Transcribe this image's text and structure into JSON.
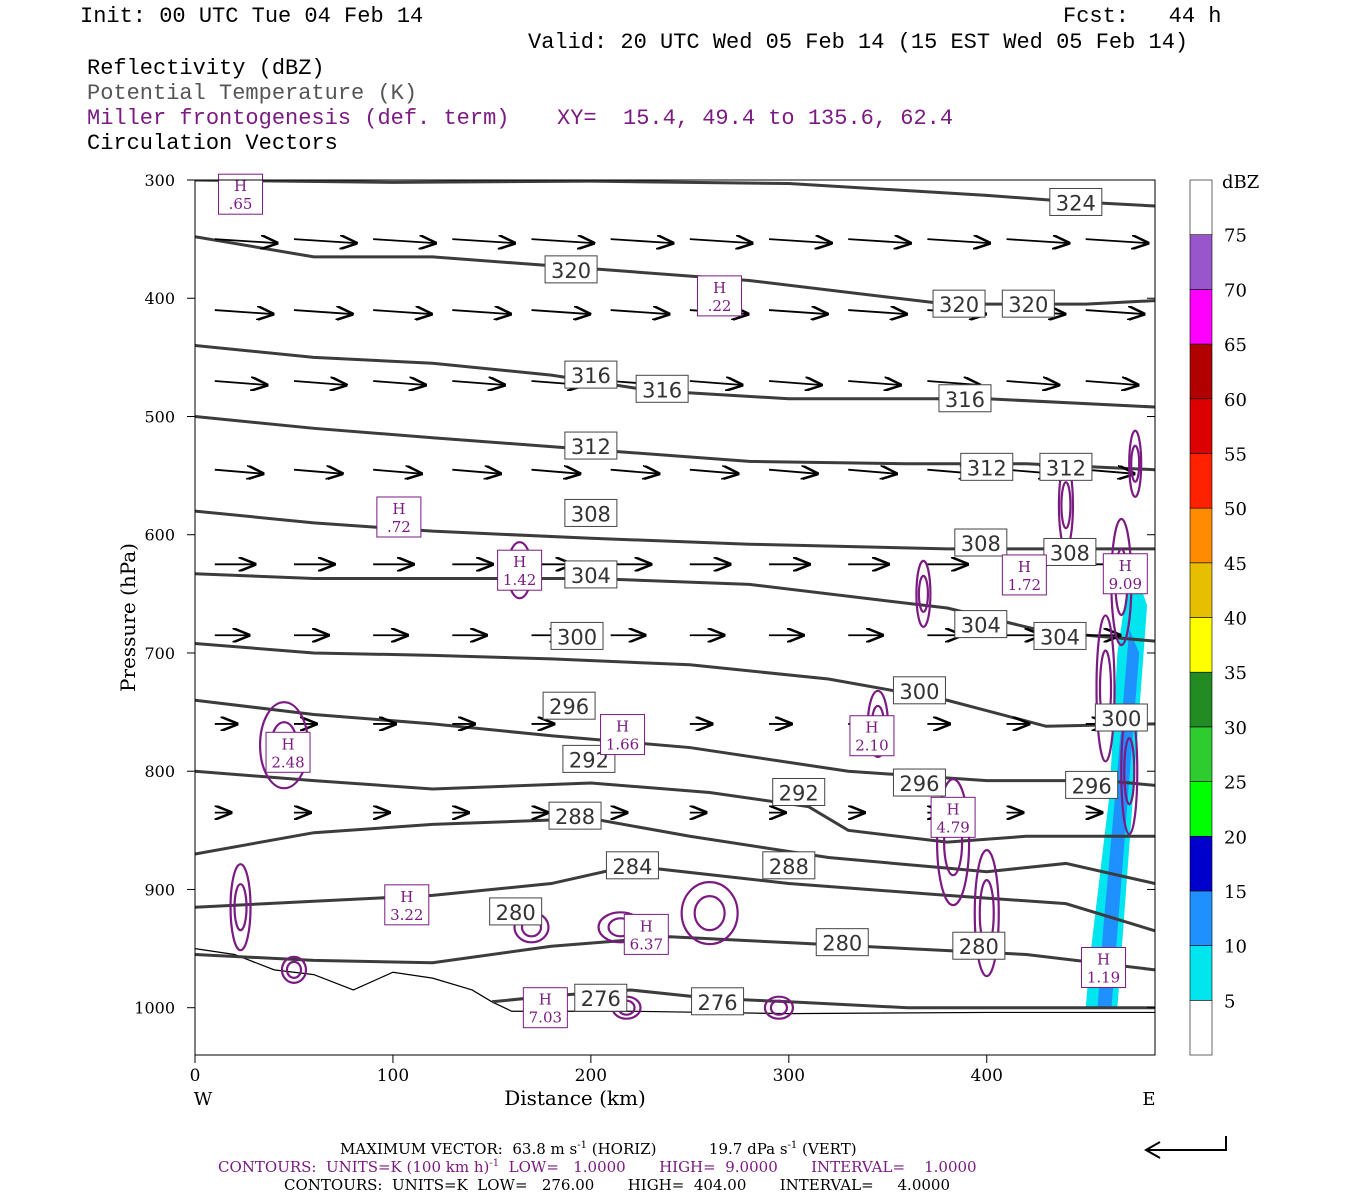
{
  "header": {
    "init": "Init: 00 UTC Tue 04 Feb 14",
    "fcst": "Fcst:   44 h",
    "valid": "Valid: 20 UTC Wed 05 Feb 14 (15 EST Wed 05 Feb 14)",
    "field_reflectivity": "Reflectivity (dBZ)",
    "field_theta": "Potential Temperature (K)",
    "field_frontogenesis": "Miller frontogenesis (def. term)",
    "xy": "XY=  15.4, 49.4 to 135.6, 62.4",
    "field_vectors": "Circulation Vectors"
  },
  "colors": {
    "theta_contour": "#3c3c3c",
    "frontogenesis": "#7a1a82",
    "vectors": "#000000"
  },
  "chart_data": {
    "type": "cross-section",
    "xlabel": "Distance (km)",
    "ylabel": "Pressure (hPa)",
    "xlim": [
      0,
      485
    ],
    "ylim": [
      1040,
      300
    ],
    "x_ticks": [
      "0",
      "100",
      "200",
      "300",
      "400"
    ],
    "y_ticks": [
      "300",
      "400",
      "500",
      "600",
      "700",
      "800",
      "900",
      "1000"
    ],
    "x_end_left": "W",
    "x_end_right": "E",
    "colorbar": {
      "unit": "dBZ",
      "levels": [
        "5",
        "10",
        "15",
        "20",
        "25",
        "30",
        "35",
        "40",
        "45",
        "50",
        "55",
        "60",
        "65",
        "70",
        "75"
      ],
      "colors": [
        "#ffffff",
        "#00e5ee",
        "#1e90ff",
        "#0000cd",
        "#00ff00",
        "#2ecc2e",
        "#228b22",
        "#ffff00",
        "#e6c000",
        "#ff8c00",
        "#ff2200",
        "#dd0000",
        "#b00000",
        "#ff00ff",
        "#9955cc",
        "#ffffff"
      ]
    },
    "theta_contours": [
      {
        "label": "324",
        "x": [
          0,
          100,
          200,
          300,
          400,
          440,
          485
        ],
        "p": [
          300,
          302,
          301,
          303,
          313,
          318,
          322
        ],
        "labels_at": [
          [
            445,
            319
          ]
        ]
      },
      {
        "label": "320",
        "x": [
          0,
          60,
          120,
          200,
          280,
          330,
          380,
          420,
          450,
          485
        ],
        "p": [
          348,
          365,
          365,
          375,
          385,
          395,
          405,
          405,
          405,
          402
        ],
        "labels_at": [
          [
            190,
            376
          ],
          [
            386,
            405
          ],
          [
            421,
            405
          ]
        ]
      },
      {
        "label": "316",
        "x": [
          0,
          60,
          120,
          180,
          230,
          300,
          400,
          485
        ],
        "p": [
          440,
          450,
          455,
          465,
          478,
          485,
          485,
          492
        ],
        "labels_at": [
          [
            200,
            465
          ],
          [
            236,
            477
          ],
          [
            389,
            485
          ]
        ]
      },
      {
        "label": "312",
        "x": [
          0,
          60,
          120,
          200,
          280,
          360,
          420,
          485
        ],
        "p": [
          500,
          510,
          518,
          528,
          538,
          540,
          540,
          545
        ],
        "labels_at": [
          [
            200,
            525
          ],
          [
            400,
            543
          ],
          [
            440,
            543
          ]
        ]
      },
      {
        "label": "308",
        "x": [
          0,
          60,
          120,
          200,
          280,
          380,
          430,
          485
        ],
        "p": [
          580,
          590,
          597,
          603,
          608,
          612,
          612,
          612
        ],
        "labels_at": [
          [
            200,
            582
          ],
          [
            397,
            607
          ],
          [
            442,
            615
          ]
        ]
      },
      {
        "label": "304",
        "x": [
          0,
          60,
          120,
          200,
          280,
          380,
          430,
          485
        ],
        "p": [
          633,
          637,
          637,
          637,
          642,
          662,
          682,
          690
        ],
        "labels_at": [
          [
            200,
            634
          ],
          [
            397,
            676
          ],
          [
            437,
            686
          ]
        ]
      },
      {
        "label": "300",
        "x": [
          0,
          60,
          120,
          180,
          250,
          320,
          380,
          430,
          485
        ],
        "p": [
          692,
          700,
          702,
          705,
          710,
          722,
          740,
          762,
          760
        ],
        "labels_at": [
          [
            193,
            686
          ],
          [
            366,
            732
          ],
          [
            468,
            755
          ]
        ]
      },
      {
        "label": "296",
        "x": [
          0,
          60,
          120,
          180,
          250,
          330,
          400,
          460,
          485
        ],
        "p": [
          740,
          752,
          760,
          770,
          780,
          800,
          808,
          808,
          812
        ],
        "labels_at": [
          [
            189,
            745
          ],
          [
            366,
            810
          ],
          [
            453,
            812
          ]
        ]
      },
      {
        "label": "292",
        "x": [
          0,
          60,
          120,
          200,
          260,
          310,
          330,
          380,
          420,
          485
        ],
        "p": [
          800,
          808,
          815,
          810,
          818,
          830,
          850,
          860,
          855,
          855
        ],
        "labels_at": [
          [
            199,
            790
          ],
          [
            305,
            818
          ]
        ]
      },
      {
        "label": "288",
        "x": [
          0,
          60,
          120,
          200,
          250,
          320,
          380,
          400,
          440,
          485
        ],
        "p": [
          870,
          852,
          845,
          840,
          855,
          873,
          882,
          885,
          878,
          895
        ],
        "labels_at": [
          [
            192,
            838
          ],
          [
            300,
            880
          ]
        ]
      },
      {
        "label": "284",
        "x": [
          0,
          60,
          120,
          180,
          220,
          300,
          380,
          440,
          485
        ],
        "p": [
          915,
          910,
          905,
          895,
          880,
          895,
          905,
          912,
          935
        ],
        "labels_at": [
          [
            221,
            880
          ]
        ]
      },
      {
        "label": "280",
        "x": [
          0,
          60,
          120,
          180,
          240,
          300,
          360,
          420,
          485
        ],
        "p": [
          955,
          960,
          962,
          948,
          940,
          945,
          950,
          955,
          968
        ],
        "labels_at": [
          [
            162,
            919
          ],
          [
            327,
            945
          ],
          [
            396,
            948
          ]
        ]
      },
      {
        "label": "276",
        "x": [
          150,
          180,
          220,
          260,
          300,
          360,
          420,
          485
        ],
        "p": [
          995,
          990,
          985,
          992,
          995,
          1000,
          1000,
          1000
        ],
        "labels_at": [
          [
            205,
            992
          ],
          [
            264,
            995
          ]
        ]
      }
    ],
    "frontogenesis_maxima": [
      {
        "label": ".65",
        "x": 23,
        "p": 312
      },
      {
        "label": ".22",
        "x": 265,
        "p": 398
      },
      {
        "label": ".72",
        "x": 103,
        "p": 585
      },
      {
        "label": "1.42",
        "x": 164,
        "p": 630
      },
      {
        "label": "1.72",
        "x": 419,
        "p": 634
      },
      {
        "label": "9.09",
        "x": 470,
        "p": 633
      },
      {
        "label": "1.66",
        "x": 216,
        "p": 769
      },
      {
        "label": "2.10",
        "x": 342,
        "p": 770
      },
      {
        "label": "2.48",
        "x": 47,
        "p": 784
      },
      {
        "label": "4.79",
        "x": 383,
        "p": 839
      },
      {
        "label": "3.22",
        "x": 107,
        "p": 913
      },
      {
        "label": "6.37",
        "x": 228,
        "p": 938
      },
      {
        "label": "1.19",
        "x": 459,
        "p": 966
      },
      {
        "label": "7.03",
        "x": 177,
        "p": 1000
      }
    ],
    "extremum_letter": "H",
    "max_vector": "MAXIMUM VECTOR:  63.8 m s^-1 (HORIZ)         19.7 dPa s^-1 (VERT)"
  },
  "footer": {
    "vector_line_a": "MAXIMUM VECTOR:  63.8 m s",
    "vector_line_b": "-1",
    "vector_line_c": " (HORIZ)           19.7 dPa s",
    "vector_line_d": "-1",
    "vector_line_e": " (VERT)",
    "contours_purple_a": "CONTOURS:  UNITS=K (100 km h)",
    "contours_purple_b": "-1",
    "contours_purple_c": "  LOW=   1.0000       HIGH=  9.0000       INTERVAL=    1.0000",
    "contours_black": "CONTOURS:  UNITS=K  LOW=   276.00       HIGH=  404.00       INTERVAL=     4.0000"
  }
}
